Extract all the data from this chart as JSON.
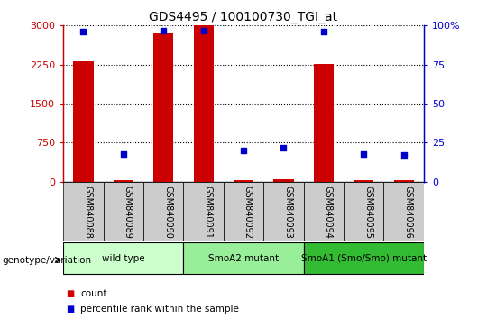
{
  "title": "GDS4495 / 100100730_TGI_at",
  "samples": [
    "GSM840088",
    "GSM840089",
    "GSM840090",
    "GSM840091",
    "GSM840092",
    "GSM840093",
    "GSM840094",
    "GSM840095",
    "GSM840096"
  ],
  "counts": [
    2320,
    30,
    2850,
    3000,
    30,
    50,
    2270,
    30,
    30
  ],
  "percentiles": [
    96,
    18,
    97,
    97,
    20,
    22,
    96,
    18,
    17
  ],
  "groups": [
    {
      "label": "wild type",
      "start": 0,
      "end": 3,
      "color": "#ccffcc"
    },
    {
      "label": "SmoA2 mutant",
      "start": 3,
      "end": 6,
      "color": "#99ee99"
    },
    {
      "label": "SmoA1 (Smo/Smo) mutant",
      "start": 6,
      "end": 9,
      "color": "#33bb33"
    }
  ],
  "left_ylim": [
    0,
    3000
  ],
  "right_ylim": [
    0,
    100
  ],
  "left_yticks": [
    0,
    750,
    1500,
    2250,
    3000
  ],
  "right_yticks": [
    0,
    25,
    50,
    75,
    100
  ],
  "left_tick_labels": [
    "0",
    "750",
    "1500",
    "2250",
    "3000"
  ],
  "right_tick_labels": [
    "0",
    "25",
    "50",
    "75",
    "100%"
  ],
  "bar_color": "#cc0000",
  "dot_color": "#0000cc",
  "bar_width": 0.5,
  "grid_color": "#000000",
  "left_axis_color": "#cc0000",
  "right_axis_color": "#0000cc",
  "legend_count_color": "#cc0000",
  "legend_pct_color": "#0000cc",
  "sample_bg_color": "#cccccc",
  "genotype_label": "genotype/variation",
  "genotype_label_color": "#000000"
}
